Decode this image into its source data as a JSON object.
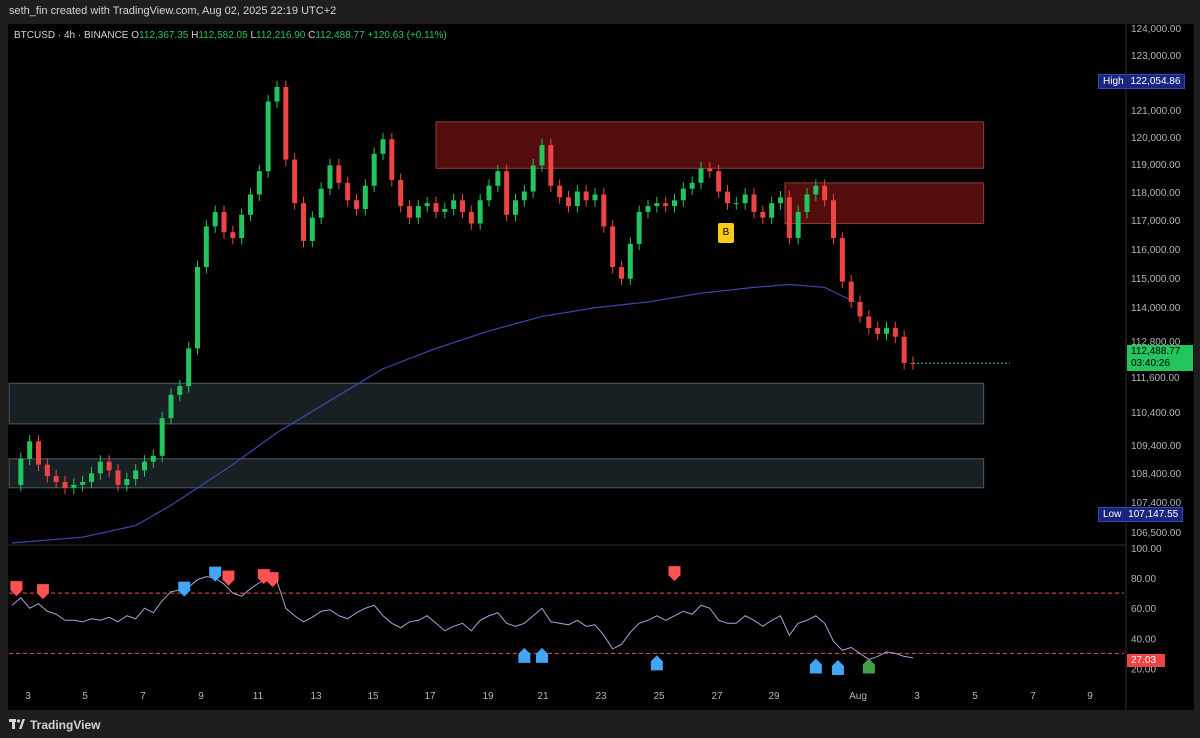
{
  "header": {
    "attribution": "seth_fin created with TradingView.com, Aug 02, 2025 22:19 UTC+2"
  },
  "legend": {
    "symbol": "BTCUSD · 4h · BINANCE",
    "open_label": "O",
    "open": "112,367.35",
    "high_label": "H",
    "high": "112,582.05",
    "low_label": "L",
    "low": "112,216.90",
    "close_label": "C",
    "close": "112,488.77",
    "change": "+120.63 (+0.11%)"
  },
  "badges": {
    "high_label": "High",
    "high_value": "122,054.86",
    "low_label": "Low",
    "low_value": "107,147.55",
    "current_price": "112,488.77",
    "countdown": "03:40:26",
    "rsi_value": "27.03",
    "marker": "B"
  },
  "price_axis": [
    "124,000.00",
    "123,000.00",
    "122,000.00",
    "121,000.00",
    "120,000.00",
    "119,000.00",
    "118,000.00",
    "117,000.00",
    "116,000.00",
    "115,000.00",
    "114,000.00",
    "112,800.00",
    "111,600.00",
    "110,400.00",
    "109,400.00",
    "108,400.00",
    "107,400.00",
    "106,500.00"
  ],
  "rsi_axis": [
    "100.00",
    "80.00",
    "60.00",
    "40.00",
    "20.00"
  ],
  "time_axis": [
    "3",
    "5",
    "7",
    "9",
    "11",
    "13",
    "15",
    "17",
    "19",
    "21",
    "23",
    "25",
    "27",
    "29",
    "Aug",
    "3",
    "5",
    "7",
    "9"
  ],
  "footer": {
    "brand": "TradingView"
  },
  "colors": {
    "up": "#22c55e",
    "down": "#ef4444",
    "rsi_line": "#b39ddb",
    "rsi_hot": "#ff5252",
    "ma": "#3949ab",
    "supply": "#b71c1c",
    "demand": "#37474f"
  },
  "chart_data": {
    "type": "candlestick",
    "title": "BTCUSD · 4h · BINANCE",
    "y_range": [
      106300,
      124100
    ],
    "rsi_range": [
      15,
      100
    ],
    "rsi_levels": [
      70,
      30
    ],
    "x_labels": [
      "3",
      "5",
      "7",
      "9",
      "11",
      "13",
      "15",
      "17",
      "19",
      "21",
      "23",
      "25",
      "27",
      "29",
      "Aug",
      "3",
      "5",
      "7",
      "9"
    ],
    "price_path": [
      [
        0,
        108300
      ],
      [
        2,
        109200
      ],
      [
        4,
        109800
      ],
      [
        6,
        109000
      ],
      [
        8,
        108600
      ],
      [
        10,
        108400
      ],
      [
        12,
        108200
      ],
      [
        14,
        108300
      ],
      [
        16,
        108400
      ],
      [
        18,
        108700
      ],
      [
        20,
        109100
      ],
      [
        22,
        108800
      ],
      [
        24,
        108300
      ],
      [
        26,
        108500
      ],
      [
        28,
        108800
      ],
      [
        30,
        109100
      ],
      [
        32,
        109300
      ],
      [
        34,
        110600
      ],
      [
        36,
        111400
      ],
      [
        38,
        111700
      ],
      [
        40,
        113000
      ],
      [
        42,
        115800
      ],
      [
        44,
        117200
      ],
      [
        46,
        117700
      ],
      [
        48,
        117000
      ],
      [
        50,
        116800
      ],
      [
        52,
        117600
      ],
      [
        54,
        118300
      ],
      [
        56,
        119100
      ],
      [
        58,
        121500
      ],
      [
        60,
        122000
      ],
      [
        62,
        119500
      ],
      [
        64,
        118000
      ],
      [
        66,
        116700
      ],
      [
        68,
        117500
      ],
      [
        70,
        118500
      ],
      [
        72,
        119300
      ],
      [
        74,
        118700
      ],
      [
        76,
        118100
      ],
      [
        78,
        117800
      ],
      [
        80,
        118600
      ],
      [
        82,
        119700
      ],
      [
        84,
        120200
      ],
      [
        86,
        118800
      ],
      [
        88,
        117900
      ],
      [
        90,
        117500
      ],
      [
        92,
        117900
      ],
      [
        94,
        118000
      ],
      [
        96,
        117700
      ],
      [
        98,
        117800
      ],
      [
        100,
        118100
      ],
      [
        102,
        117700
      ],
      [
        104,
        117300
      ],
      [
        106,
        118100
      ],
      [
        108,
        118600
      ],
      [
        110,
        119100
      ],
      [
        112,
        117600
      ],
      [
        114,
        118100
      ],
      [
        116,
        118400
      ],
      [
        118,
        119300
      ],
      [
        120,
        120000
      ],
      [
        122,
        118600
      ],
      [
        124,
        118200
      ],
      [
        126,
        117900
      ],
      [
        128,
        118400
      ],
      [
        130,
        118100
      ],
      [
        132,
        118300
      ],
      [
        134,
        117200
      ],
      [
        136,
        115800
      ],
      [
        138,
        115400
      ],
      [
        140,
        116600
      ],
      [
        142,
        117700
      ],
      [
        144,
        117900
      ],
      [
        146,
        118000
      ],
      [
        148,
        117900
      ],
      [
        150,
        118100
      ],
      [
        152,
        118500
      ],
      [
        154,
        118700
      ],
      [
        156,
        119200
      ],
      [
        158,
        119100
      ],
      [
        160,
        118400
      ],
      [
        162,
        118000
      ],
      [
        164,
        118000
      ],
      [
        166,
        118300
      ],
      [
        168,
        117700
      ],
      [
        170,
        117500
      ],
      [
        172,
        118000
      ],
      [
        174,
        118200
      ],
      [
        176,
        116800
      ],
      [
        178,
        117700
      ],
      [
        180,
        118300
      ],
      [
        182,
        118600
      ],
      [
        184,
        118100
      ],
      [
        186,
        116800
      ],
      [
        188,
        115300
      ],
      [
        190,
        114600
      ],
      [
        192,
        114100
      ],
      [
        194,
        113700
      ],
      [
        196,
        113500
      ],
      [
        198,
        113700
      ],
      [
        200,
        113400
      ],
      [
        202,
        112500
      ],
      [
        204,
        112490
      ]
    ],
    "ma_path": [
      [
        0,
        106300
      ],
      [
        16,
        106500
      ],
      [
        28,
        106900
      ],
      [
        36,
        107600
      ],
      [
        42,
        108200
      ],
      [
        50,
        109000
      ],
      [
        60,
        110100
      ],
      [
        72,
        111200
      ],
      [
        84,
        112300
      ],
      [
        96,
        113000
      ],
      [
        108,
        113600
      ],
      [
        120,
        114100
      ],
      [
        132,
        114400
      ],
      [
        144,
        114600
      ],
      [
        156,
        114900
      ],
      [
        168,
        115100
      ],
      [
        176,
        115200
      ],
      [
        184,
        115100
      ],
      [
        188,
        114800
      ],
      [
        191,
        114600
      ]
    ],
    "rsi": [
      [
        0,
        62
      ],
      [
        2,
        67
      ],
      [
        4,
        60
      ],
      [
        6,
        63
      ],
      [
        8,
        58
      ],
      [
        10,
        56
      ],
      [
        12,
        52
      ],
      [
        14,
        52
      ],
      [
        16,
        51
      ],
      [
        18,
        53
      ],
      [
        20,
        52
      ],
      [
        22,
        54
      ],
      [
        24,
        51
      ],
      [
        26,
        55
      ],
      [
        28,
        53
      ],
      [
        30,
        60
      ],
      [
        32,
        57
      ],
      [
        34,
        65
      ],
      [
        36,
        71
      ],
      [
        38,
        72
      ],
      [
        40,
        74
      ],
      [
        42,
        79
      ],
      [
        44,
        81
      ],
      [
        46,
        80
      ],
      [
        48,
        76
      ],
      [
        50,
        70
      ],
      [
        52,
        68
      ],
      [
        54,
        73
      ],
      [
        56,
        77
      ],
      [
        58,
        80
      ],
      [
        60,
        78
      ],
      [
        62,
        60
      ],
      [
        64,
        55
      ],
      [
        66,
        51
      ],
      [
        68,
        54
      ],
      [
        70,
        58
      ],
      [
        72,
        59
      ],
      [
        74,
        55
      ],
      [
        76,
        53
      ],
      [
        78,
        57
      ],
      [
        80,
        60
      ],
      [
        82,
        62
      ],
      [
        84,
        55
      ],
      [
        86,
        50
      ],
      [
        88,
        47
      ],
      [
        90,
        51
      ],
      [
        92,
        52
      ],
      [
        94,
        55
      ],
      [
        96,
        50
      ],
      [
        98,
        45
      ],
      [
        100,
        48
      ],
      [
        102,
        50
      ],
      [
        104,
        45
      ],
      [
        106,
        52
      ],
      [
        108,
        55
      ],
      [
        110,
        57
      ],
      [
        112,
        50
      ],
      [
        114,
        48
      ],
      [
        116,
        50
      ],
      [
        118,
        55
      ],
      [
        120,
        60
      ],
      [
        122,
        51
      ],
      [
        124,
        50
      ],
      [
        126,
        49
      ],
      [
        128,
        52
      ],
      [
        130,
        48
      ],
      [
        132,
        49
      ],
      [
        134,
        42
      ],
      [
        136,
        33
      ],
      [
        138,
        36
      ],
      [
        140,
        44
      ],
      [
        142,
        50
      ],
      [
        144,
        52
      ],
      [
        146,
        55
      ],
      [
        148,
        52
      ],
      [
        150,
        55
      ],
      [
        152,
        58
      ],
      [
        154,
        56
      ],
      [
        156,
        62
      ],
      [
        158,
        60
      ],
      [
        160,
        52
      ],
      [
        162,
        50
      ],
      [
        164,
        50
      ],
      [
        166,
        55
      ],
      [
        168,
        52
      ],
      [
        170,
        48
      ],
      [
        172,
        52
      ],
      [
        174,
        55
      ],
      [
        176,
        42
      ],
      [
        178,
        50
      ],
      [
        180,
        52
      ],
      [
        182,
        55
      ],
      [
        184,
        50
      ],
      [
        186,
        38
      ],
      [
        188,
        32
      ],
      [
        190,
        34
      ],
      [
        192,
        30
      ],
      [
        194,
        26
      ],
      [
        196,
        28
      ],
      [
        198,
        31
      ],
      [
        200,
        30
      ],
      [
        202,
        28
      ],
      [
        204,
        27
      ]
    ],
    "supply_zones": [
      {
        "from": 96,
        "to": 220,
        "top": 120800,
        "bottom": 119200
      },
      {
        "from": 175,
        "to": 220,
        "top": 118700,
        "bottom": 117300
      }
    ],
    "demand_zones": [
      {
        "from": -2,
        "to": 220,
        "top": 111800,
        "bottom": 110400
      },
      {
        "from": -2,
        "to": 220,
        "top": 109200,
        "bottom": 108200
      }
    ],
    "rsi_signals_sell": [
      [
        1,
        72
      ],
      [
        7,
        70
      ],
      [
        49,
        79
      ],
      [
        57,
        80
      ],
      [
        59,
        78
      ],
      [
        150,
        82
      ]
    ],
    "rsi_signals_buy": [
      [
        39,
        73
      ],
      [
        46,
        83
      ],
      [
        116,
        31
      ],
      [
        120,
        31
      ],
      [
        146,
        26
      ],
      [
        182,
        24
      ],
      [
        187,
        23
      ]
    ],
    "rsi_signal_last": [
      [
        194,
        20
      ]
    ]
  }
}
